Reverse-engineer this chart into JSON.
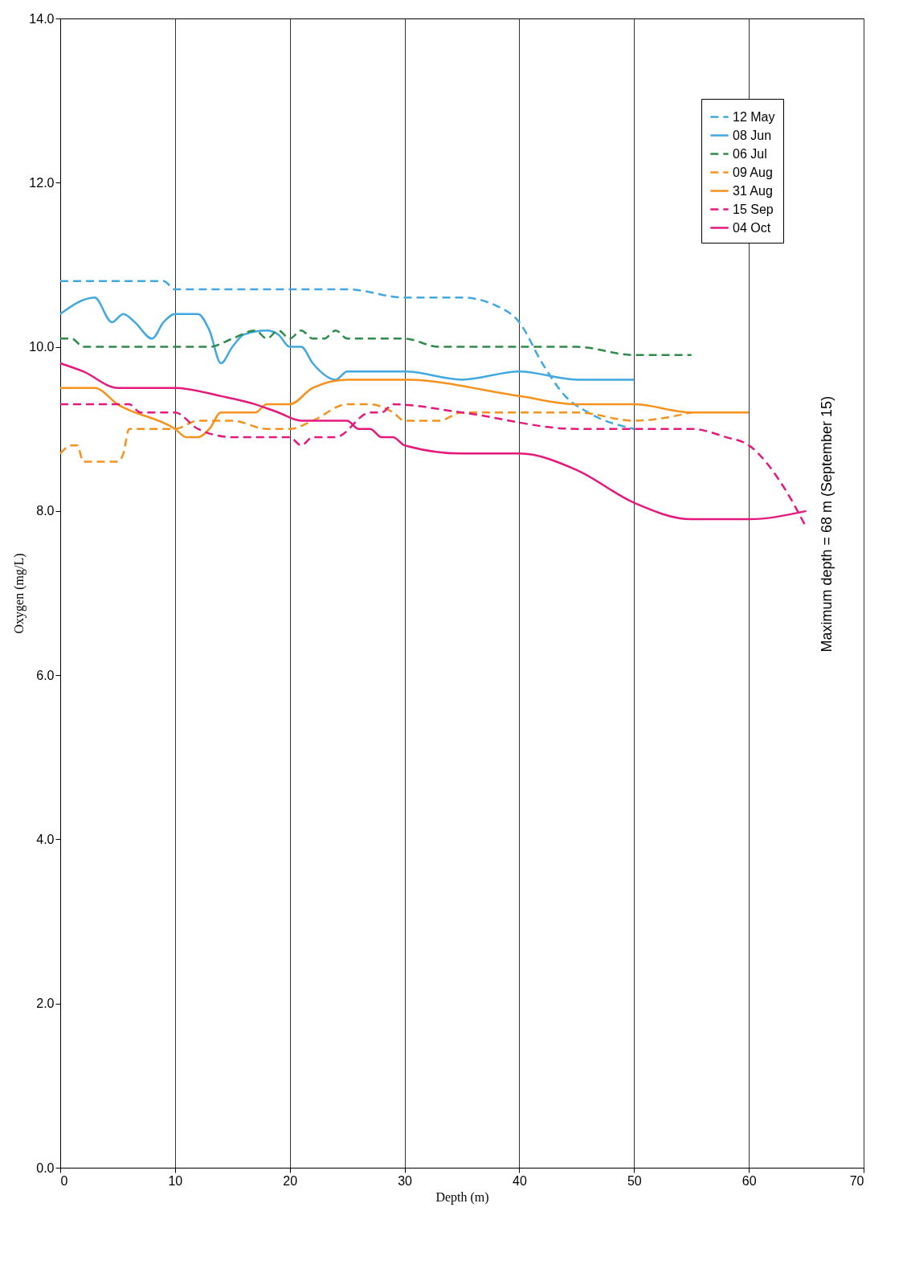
{
  "chart_data": {
    "type": "line",
    "xlabel": "Depth (m)",
    "ylabel": "Oxygen (mg/L)",
    "xlim": [
      0,
      70
    ],
    "xticks": [
      0,
      10,
      20,
      30,
      40,
      50,
      60,
      70
    ],
    "ylim": [
      0,
      14
    ],
    "yticks": [
      {
        "value": 0,
        "label": "0.0"
      },
      {
        "value": 2,
        "label": "2.0"
      },
      {
        "value": 4,
        "label": "4.0"
      },
      {
        "value": 6,
        "label": "6.0"
      },
      {
        "value": 8,
        "label": "8.0"
      },
      {
        "value": 10,
        "label": "10.0"
      },
      {
        "value": 12,
        "label": "12.0"
      },
      {
        "value": 14,
        "label": "14.0"
      }
    ],
    "grid": "x",
    "legend": "top right",
    "marker": "none",
    "annotations": [
      "Maximum depth = 68 m (September 15)"
    ],
    "series": [
      {
        "name": "12 May",
        "color": "#41a8e0",
        "line_style": "dashed",
        "x": [
          0,
          9,
          10,
          20,
          25,
          30,
          35,
          38,
          40,
          42,
          44,
          46,
          50
        ],
        "values": [
          10.8,
          10.8,
          10.7,
          10.7,
          10.7,
          10.6,
          10.6,
          10.5,
          10.3,
          9.8,
          9.4,
          9.2,
          9.0
        ]
      },
      {
        "name": "08 Jun",
        "color": "#41a8e0",
        "line_style": "solid",
        "x": [
          0,
          3,
          4.5,
          5.5,
          6.5,
          8,
          9,
          10,
          12,
          13,
          14,
          15,
          16,
          18,
          19,
          20,
          21,
          22,
          24,
          25,
          30,
          35,
          40,
          45,
          50
        ],
        "values": [
          10.4,
          10.6,
          10.3,
          10.4,
          10.3,
          10.1,
          10.3,
          10.4,
          10.4,
          10.2,
          9.8,
          10.0,
          10.15,
          10.2,
          10.15,
          10.0,
          10.0,
          9.8,
          9.6,
          9.7,
          9.7,
          9.6,
          9.7,
          9.6,
          9.6
        ]
      },
      {
        "name": "06 Jul",
        "color": "#2e8b4a",
        "line_style": "dashed",
        "x": [
          0,
          1,
          2,
          13,
          15,
          17,
          18,
          19,
          20,
          21,
          22,
          23,
          24,
          25,
          30,
          33,
          45,
          50,
          55
        ],
        "values": [
          10.1,
          10.1,
          10.0,
          10.0,
          10.1,
          10.2,
          10.1,
          10.2,
          10.1,
          10.2,
          10.1,
          10.1,
          10.2,
          10.1,
          10.1,
          10.0,
          10.0,
          9.9,
          9.9
        ]
      },
      {
        "name": "09 Aug",
        "color": "#f5921e",
        "line_style": "dashed",
        "x": [
          0,
          1,
          1.5,
          2,
          5,
          5.5,
          6,
          10,
          12,
          15,
          18,
          20,
          22,
          25,
          27,
          29,
          30,
          33,
          35,
          45,
          50,
          55
        ],
        "values": [
          8.7,
          8.8,
          8.8,
          8.6,
          8.6,
          8.7,
          9.0,
          9.0,
          9.1,
          9.1,
          9.0,
          9.0,
          9.1,
          9.3,
          9.3,
          9.2,
          9.1,
          9.1,
          9.2,
          9.2,
          9.1,
          9.2
        ]
      },
      {
        "name": "31 Aug",
        "color": "#f5921e",
        "line_style": "solid",
        "x": [
          0,
          3,
          5,
          10,
          11,
          12,
          13,
          14,
          17,
          18,
          20,
          22,
          25,
          30,
          40,
          45,
          50,
          55,
          60
        ],
        "values": [
          9.5,
          9.5,
          9.3,
          9.0,
          8.9,
          8.9,
          9.0,
          9.2,
          9.2,
          9.3,
          9.3,
          9.5,
          9.6,
          9.6,
          9.4,
          9.3,
          9.3,
          9.2,
          9.2
        ]
      },
      {
        "name": "15 Sep",
        "color": "#e5197c",
        "line_style": "dashed",
        "x": [
          0,
          6,
          7,
          10,
          12,
          15,
          17,
          20,
          21,
          22,
          24,
          27,
          28,
          29,
          35,
          45,
          50,
          55,
          58,
          60,
          63,
          65
        ],
        "values": [
          9.3,
          9.3,
          9.2,
          9.2,
          9.0,
          8.9,
          8.9,
          8.9,
          8.8,
          8.9,
          8.9,
          9.2,
          9.2,
          9.3,
          9.2,
          9.0,
          9.0,
          9.0,
          8.9,
          8.8,
          8.3,
          7.8
        ]
      },
      {
        "name": "04 Oct",
        "color": "#e5197c",
        "line_style": "solid",
        "x": [
          0,
          2,
          5,
          10,
          14,
          17,
          19,
          21,
          25,
          26,
          27,
          28,
          29,
          30,
          35,
          40,
          45,
          50,
          55,
          60,
          65
        ],
        "values": [
          9.8,
          9.7,
          9.5,
          9.5,
          9.4,
          9.3,
          9.2,
          9.1,
          9.1,
          9.0,
          9.0,
          8.9,
          8.9,
          8.8,
          8.7,
          8.7,
          8.5,
          8.1,
          7.9,
          7.9,
          8.0
        ]
      }
    ]
  }
}
